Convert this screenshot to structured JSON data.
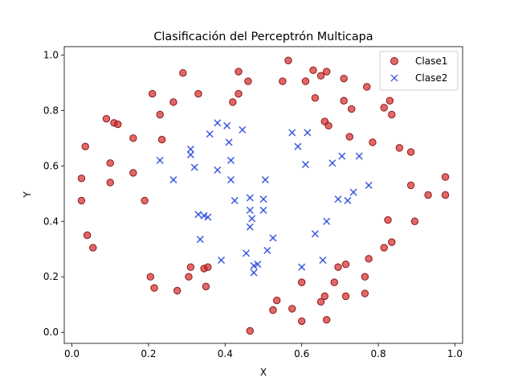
{
  "chart_data": {
    "type": "scatter",
    "title": "Clasificación del Perceptrón Multicapa",
    "xlabel": "X",
    "ylabel": "Y",
    "xlim": [
      -0.02,
      1.02
    ],
    "ylim": [
      -0.04,
      1.03
    ],
    "xticks": [
      "0.0",
      "0.2",
      "0.4",
      "0.6",
      "0.8",
      "1.0"
    ],
    "yticks": [
      "0.0",
      "0.2",
      "0.4",
      "0.6",
      "0.8",
      "1.0"
    ],
    "grid": false,
    "legend_position": "top-right",
    "series": [
      {
        "name": "Clase1",
        "marker": "circle",
        "color": "#d62728",
        "points": [
          [
            0.025,
            0.555
          ],
          [
            0.035,
            0.67
          ],
          [
            0.1,
            0.61
          ],
          [
            0.1,
            0.54
          ],
          [
            0.09,
            0.77
          ],
          [
            0.11,
            0.755
          ],
          [
            0.12,
            0.75
          ],
          [
            0.16,
            0.7
          ],
          [
            0.16,
            0.575
          ],
          [
            0.19,
            0.475
          ],
          [
            0.025,
            0.475
          ],
          [
            0.04,
            0.35
          ],
          [
            0.055,
            0.305
          ],
          [
            0.21,
            0.86
          ],
          [
            0.23,
            0.785
          ],
          [
            0.235,
            0.695
          ],
          [
            0.265,
            0.83
          ],
          [
            0.29,
            0.935
          ],
          [
            0.33,
            0.86
          ],
          [
            0.42,
            0.83
          ],
          [
            0.435,
            0.86
          ],
          [
            0.435,
            0.94
          ],
          [
            0.46,
            0.905
          ],
          [
            0.55,
            0.905
          ],
          [
            0.565,
            0.98
          ],
          [
            0.61,
            0.905
          ],
          [
            0.63,
            0.945
          ],
          [
            0.65,
            0.925
          ],
          [
            0.665,
            0.94
          ],
          [
            0.635,
            0.845
          ],
          [
            0.66,
            0.76
          ],
          [
            0.67,
            0.745
          ],
          [
            0.71,
            0.915
          ],
          [
            0.71,
            0.835
          ],
          [
            0.73,
            0.805
          ],
          [
            0.725,
            0.705
          ],
          [
            0.77,
            0.885
          ],
          [
            0.785,
            0.685
          ],
          [
            0.815,
            0.81
          ],
          [
            0.83,
            0.835
          ],
          [
            0.835,
            0.785
          ],
          [
            0.855,
            0.665
          ],
          [
            0.885,
            0.65
          ],
          [
            0.885,
            0.53
          ],
          [
            0.93,
            0.495
          ],
          [
            0.975,
            0.56
          ],
          [
            0.975,
            0.495
          ],
          [
            0.205,
            0.2
          ],
          [
            0.215,
            0.16
          ],
          [
            0.275,
            0.15
          ],
          [
            0.305,
            0.2
          ],
          [
            0.31,
            0.235
          ],
          [
            0.345,
            0.23
          ],
          [
            0.35,
            0.165
          ],
          [
            0.355,
            0.235
          ],
          [
            0.465,
            0.005
          ],
          [
            0.525,
            0.08
          ],
          [
            0.535,
            0.115
          ],
          [
            0.575,
            0.085
          ],
          [
            0.6,
            0.04
          ],
          [
            0.6,
            0.18
          ],
          [
            0.65,
            0.11
          ],
          [
            0.66,
            0.13
          ],
          [
            0.665,
            0.045
          ],
          [
            0.685,
            0.18
          ],
          [
            0.695,
            0.235
          ],
          [
            0.715,
            0.245
          ],
          [
            0.715,
            0.13
          ],
          [
            0.765,
            0.2
          ],
          [
            0.765,
            0.14
          ],
          [
            0.775,
            0.265
          ],
          [
            0.815,
            0.305
          ],
          [
            0.825,
            0.405
          ],
          [
            0.835,
            0.325
          ],
          [
            0.895,
            0.4
          ]
        ]
      },
      {
        "name": "Clase2",
        "marker": "x",
        "color": "#1f3fd8",
        "points": [
          [
            0.23,
            0.62
          ],
          [
            0.265,
            0.55
          ],
          [
            0.31,
            0.66
          ],
          [
            0.31,
            0.64
          ],
          [
            0.32,
            0.595
          ],
          [
            0.33,
            0.425
          ],
          [
            0.335,
            0.335
          ],
          [
            0.345,
            0.42
          ],
          [
            0.355,
            0.415
          ],
          [
            0.36,
            0.715
          ],
          [
            0.38,
            0.755
          ],
          [
            0.38,
            0.585
          ],
          [
            0.39,
            0.26
          ],
          [
            0.405,
            0.745
          ],
          [
            0.41,
            0.685
          ],
          [
            0.415,
            0.62
          ],
          [
            0.415,
            0.55
          ],
          [
            0.425,
            0.475
          ],
          [
            0.445,
            0.73
          ],
          [
            0.455,
            0.285
          ],
          [
            0.465,
            0.485
          ],
          [
            0.465,
            0.44
          ],
          [
            0.465,
            0.38
          ],
          [
            0.47,
            0.41
          ],
          [
            0.475,
            0.24
          ],
          [
            0.475,
            0.215
          ],
          [
            0.485,
            0.245
          ],
          [
            0.5,
            0.48
          ],
          [
            0.5,
            0.44
          ],
          [
            0.505,
            0.55
          ],
          [
            0.51,
            0.295
          ],
          [
            0.525,
            0.34
          ],
          [
            0.575,
            0.72
          ],
          [
            0.59,
            0.67
          ],
          [
            0.6,
            0.235
          ],
          [
            0.61,
            0.605
          ],
          [
            0.615,
            0.72
          ],
          [
            0.635,
            0.355
          ],
          [
            0.655,
            0.26
          ],
          [
            0.665,
            0.4
          ],
          [
            0.68,
            0.61
          ],
          [
            0.695,
            0.48
          ],
          [
            0.705,
            0.635
          ],
          [
            0.72,
            0.475
          ],
          [
            0.735,
            0.505
          ],
          [
            0.75,
            0.635
          ],
          [
            0.775,
            0.53
          ]
        ]
      }
    ]
  }
}
